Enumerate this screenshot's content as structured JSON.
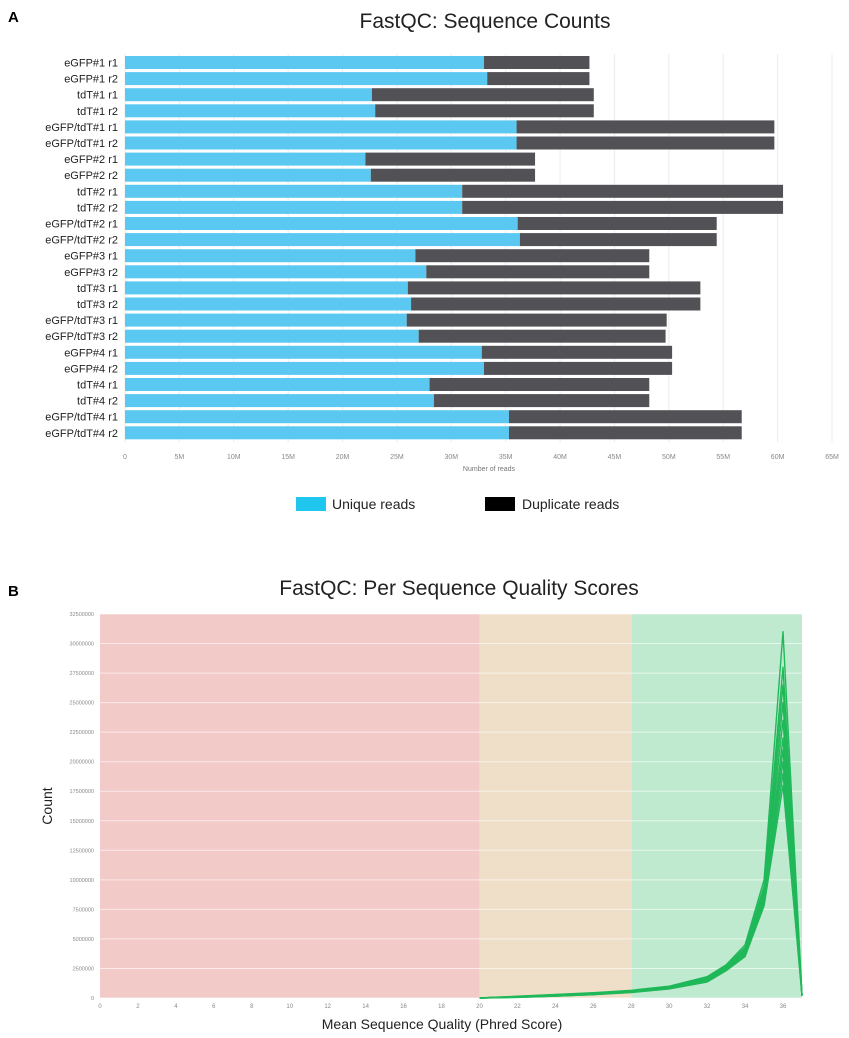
{
  "chart_data": [
    {
      "panel_label": "A",
      "type": "bar",
      "stacked": true,
      "orientation": "horizontal",
      "title": "FastQC: Sequence Counts",
      "xlabel": "Number of reads",
      "ylabel": "",
      "xlim": [
        0,
        65000000
      ],
      "x_ticks": [
        "0",
        "5M",
        "10M",
        "15M",
        "20M",
        "25M",
        "30M",
        "35M",
        "40M",
        "45M",
        "50M",
        "55M",
        "60M",
        "65M"
      ],
      "categories": [
        "eGFP#1 r1",
        "eGFP#1 r2",
        "tdT#1 r1",
        "tdT#1 r2",
        "eGFP/tdT#1 r1",
        "eGFP/tdT#1 r2",
        "eGFP#2 r1",
        "eGFP#2 r2",
        "tdT#2 r1",
        "tdT#2 r2",
        "eGFP/tdT#2 r1",
        "eGFP/tdT#2 r2",
        "eGFP#3 r1",
        "eGFP#3 r2",
        "tdT#3 r1",
        "tdT#3 r2",
        "eGFP/tdT#3 r1",
        "eGFP/tdT#3 r2",
        "eGFP#4 r1",
        "eGFP#4 r2",
        "tdT#4 r1",
        "tdT#4 r2",
        "eGFP/tdT#4 r1",
        "eGFP/tdT#4 r2"
      ],
      "series": [
        {
          "name": "Unique reads",
          "color": "#5bc8f2",
          "values": [
            33000000,
            33300000,
            22700000,
            23000000,
            36000000,
            36000000,
            22100000,
            22600000,
            31000000,
            31000000,
            36100000,
            36300000,
            26700000,
            27700000,
            26000000,
            26300000,
            25900000,
            27000000,
            32800000,
            33000000,
            28000000,
            28400000,
            35300000,
            35300000
          ]
        },
        {
          "name": "Duplicate reads",
          "color": "#525256",
          "values": [
            9700000,
            9400000,
            20400000,
            20100000,
            23700000,
            23700000,
            15600000,
            15100000,
            29500000,
            29500000,
            18300000,
            18100000,
            21500000,
            20500000,
            26900000,
            26600000,
            23900000,
            22700000,
            17500000,
            17300000,
            20200000,
            19800000,
            21400000,
            21400000
          ]
        }
      ],
      "legend": {
        "position": "bottom-center",
        "legend_colors": [
          "#1fc6ee",
          "#000000"
        ]
      },
      "grid": true
    },
    {
      "panel_label": "B",
      "type": "line",
      "title": "FastQC: Per Sequence Quality Scores",
      "xlabel": "Mean Sequence Quality (Phred Score)",
      "ylabel": "Count",
      "xlim": [
        0,
        37
      ],
      "ylim": [
        0,
        32500000
      ],
      "x_ticks": [
        "0",
        "2",
        "4",
        "6",
        "8",
        "10",
        "12",
        "14",
        "16",
        "18",
        "20",
        "22",
        "24",
        "26",
        "28",
        "30",
        "32",
        "34",
        "36"
      ],
      "y_ticks": [
        "0",
        "2500000",
        "5000000",
        "7500000",
        "10000000",
        "12500000",
        "15000000",
        "17500000",
        "20000000",
        "22500000",
        "25000000",
        "27500000",
        "30000000",
        "32500000"
      ],
      "bands": [
        {
          "from": 0,
          "to": 20,
          "color": "#f2cbc9"
        },
        {
          "from": 20,
          "to": 28,
          "color": "#efdfc9"
        },
        {
          "from": 28,
          "to": 37,
          "color": "#c0ead0"
        }
      ],
      "line_color": "#20b859",
      "x": [
        20,
        22,
        24,
        26,
        28,
        30,
        32,
        33,
        34,
        35,
        36,
        37
      ],
      "series": [
        {
          "values": [
            0,
            150000,
            300000,
            450000,
            650000,
            1000000,
            1800000,
            2800000,
            4500000,
            10000000,
            31000000,
            200000
          ]
        },
        {
          "values": [
            0,
            130000,
            280000,
            420000,
            620000,
            950000,
            1750000,
            2700000,
            4300000,
            9500000,
            28000000,
            200000
          ]
        },
        {
          "values": [
            0,
            120000,
            260000,
            400000,
            600000,
            920000,
            1700000,
            2650000,
            4200000,
            9300000,
            26500000,
            200000
          ]
        },
        {
          "values": [
            0,
            110000,
            240000,
            380000,
            580000,
            900000,
            1650000,
            2600000,
            4100000,
            9000000,
            25000000,
            200000
          ]
        },
        {
          "values": [
            0,
            100000,
            220000,
            360000,
            560000,
            870000,
            1600000,
            2550000,
            4000000,
            8800000,
            23500000,
            200000
          ]
        },
        {
          "values": [
            0,
            90000,
            200000,
            340000,
            540000,
            850000,
            1550000,
            2500000,
            3900000,
            8600000,
            22000000,
            200000
          ]
        },
        {
          "values": [
            0,
            80000,
            180000,
            320000,
            520000,
            830000,
            1500000,
            2450000,
            3800000,
            8400000,
            21000000,
            200000
          ]
        },
        {
          "values": [
            0,
            70000,
            170000,
            300000,
            500000,
            810000,
            1450000,
            2400000,
            3700000,
            8200000,
            20000000,
            200000
          ]
        },
        {
          "values": [
            0,
            60000,
            160000,
            290000,
            480000,
            790000,
            1400000,
            2350000,
            3600000,
            8000000,
            19000000,
            200000
          ]
        },
        {
          "values": [
            0,
            50000,
            150000,
            280000,
            460000,
            770000,
            1350000,
            2300000,
            3500000,
            7800000,
            18000000,
            200000
          ]
        }
      ],
      "grid": true
    }
  ]
}
